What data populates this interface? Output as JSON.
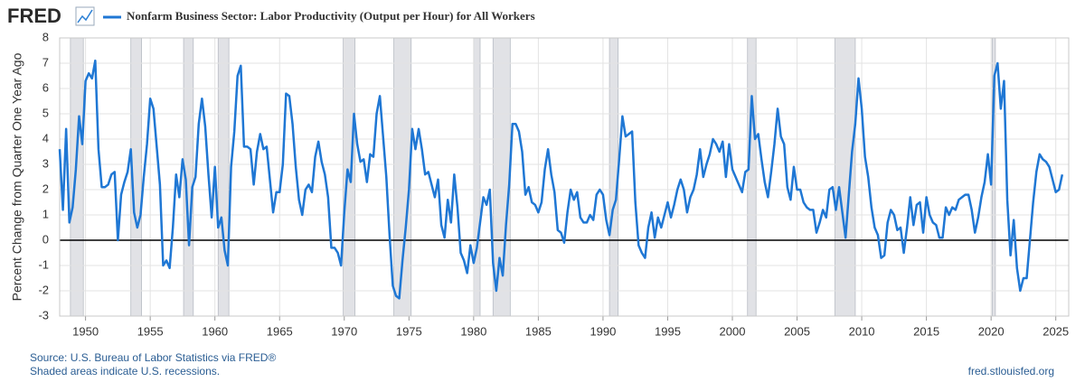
{
  "chart_data": {
    "type": "line",
    "logo": "FRED",
    "title": "Nonfarm Business Sector: Labor Productivity (Output per Hour) for All Workers",
    "ylabel": "Percent Change from Quarter One Year Ago",
    "source": "Source: U.S. Bureau of Labor Statistics via FRED®",
    "note": "Shaded areas indicate U.S. recessions.",
    "url": "fred.stlouisfed.org",
    "xlim": [
      1948,
      2026
    ],
    "xticks": [
      1950,
      1955,
      1960,
      1965,
      1970,
      1975,
      1980,
      1985,
      1990,
      1995,
      2000,
      2005,
      2010,
      2015,
      2020,
      2025
    ],
    "ylim": [
      -3,
      8
    ],
    "yticks": [
      -3,
      -2,
      -1,
      0,
      1,
      2,
      3,
      4,
      5,
      6,
      7,
      8
    ],
    "grid": true,
    "recession_color": "#e1e2e6",
    "recessions": [
      [
        1948.83,
        1949.83
      ],
      [
        1953.5,
        1954.33
      ],
      [
        1957.58,
        1958.33
      ],
      [
        1960.25,
        1961.08
      ],
      [
        1969.92,
        1970.83
      ],
      [
        1973.83,
        1975.17
      ],
      [
        1980.0,
        1980.5
      ],
      [
        1981.5,
        1982.83
      ],
      [
        1990.5,
        1991.17
      ],
      [
        2001.17,
        2001.83
      ],
      [
        2007.92,
        2009.5
      ],
      [
        2020.08,
        2020.33
      ]
    ],
    "x": [
      1948,
      1948.25,
      1948.5,
      1948.75,
      1949,
      1949.25,
      1949.5,
      1949.75,
      1950,
      1950.25,
      1950.5,
      1950.75,
      1951,
      1951.25,
      1951.5,
      1951.75,
      1952,
      1952.25,
      1952.5,
      1952.75,
      1953,
      1953.25,
      1953.5,
      1953.75,
      1954,
      1954.25,
      1954.5,
      1954.75,
      1955,
      1955.25,
      1955.5,
      1955.75,
      1956,
      1956.25,
      1956.5,
      1956.75,
      1957,
      1957.25,
      1957.5,
      1957.75,
      1958,
      1958.25,
      1958.5,
      1958.75,
      1959,
      1959.25,
      1959.5,
      1959.75,
      1960,
      1960.25,
      1960.5,
      1960.75,
      1961,
      1961.25,
      1961.5,
      1961.75,
      1962,
      1962.25,
      1962.5,
      1962.75,
      1963,
      1963.25,
      1963.5,
      1963.75,
      1964,
      1964.25,
      1964.5,
      1964.75,
      1965,
      1965.25,
      1965.5,
      1965.75,
      1966,
      1966.25,
      1966.5,
      1966.75,
      1967,
      1967.25,
      1967.5,
      1967.75,
      1968,
      1968.25,
      1968.5,
      1968.75,
      1969,
      1969.25,
      1969.5,
      1969.75,
      1970,
      1970.25,
      1970.5,
      1970.75,
      1971,
      1971.25,
      1971.5,
      1971.75,
      1972,
      1972.25,
      1972.5,
      1972.75,
      1973,
      1973.25,
      1973.5,
      1973.75,
      1974,
      1974.25,
      1974.5,
      1974.75,
      1975,
      1975.25,
      1975.5,
      1975.75,
      1976,
      1976.25,
      1976.5,
      1976.75,
      1977,
      1977.25,
      1977.5,
      1977.75,
      1978,
      1978.25,
      1978.5,
      1978.75,
      1979,
      1979.25,
      1979.5,
      1979.75,
      1980,
      1980.25,
      1980.5,
      1980.75,
      1981,
      1981.25,
      1981.5,
      1981.75,
      1982,
      1982.25,
      1982.5,
      1982.75,
      1983,
      1983.25,
      1983.5,
      1983.75,
      1984,
      1984.25,
      1984.5,
      1984.75,
      1985,
      1985.25,
      1985.5,
      1985.75,
      1986,
      1986.25,
      1986.5,
      1986.75,
      1987,
      1987.25,
      1987.5,
      1987.75,
      1988,
      1988.25,
      1988.5,
      1988.75,
      1989,
      1989.25,
      1989.5,
      1989.75,
      1990,
      1990.25,
      1990.5,
      1990.75,
      1991,
      1991.25,
      1991.5,
      1991.75,
      1992,
      1992.25,
      1992.5,
      1992.75,
      1993,
      1993.25,
      1993.5,
      1993.75,
      1994,
      1994.25,
      1994.5,
      1994.75,
      1995,
      1995.25,
      1995.5,
      1995.75,
      1996,
      1996.25,
      1996.5,
      1996.75,
      1997,
      1997.25,
      1997.5,
      1997.75,
      1998,
      1998.25,
      1998.5,
      1998.75,
      1999,
      1999.25,
      1999.5,
      1999.75,
      2000,
      2000.25,
      2000.5,
      2000.75,
      2001,
      2001.25,
      2001.5,
      2001.75,
      2002,
      2002.25,
      2002.5,
      2002.75,
      2003,
      2003.25,
      2003.5,
      2003.75,
      2004,
      2004.25,
      2004.5,
      2004.75,
      2005,
      2005.25,
      2005.5,
      2005.75,
      2006,
      2006.25,
      2006.5,
      2006.75,
      2007,
      2007.25,
      2007.5,
      2007.75,
      2008,
      2008.25,
      2008.5,
      2008.75,
      2009,
      2009.25,
      2009.5,
      2009.75,
      2010,
      2010.25,
      2010.5,
      2010.75,
      2011,
      2011.25,
      2011.5,
      2011.75,
      2012,
      2012.25,
      2012.5,
      2012.75,
      2013,
      2013.25,
      2013.5,
      2013.75,
      2014,
      2014.25,
      2014.5,
      2014.75,
      2015,
      2015.25,
      2015.5,
      2015.75,
      2016,
      2016.25,
      2016.5,
      2016.75,
      2017,
      2017.25,
      2017.5,
      2017.75,
      2018,
      2018.25,
      2018.5,
      2018.75,
      2019,
      2019.25,
      2019.5,
      2019.75,
      2020,
      2020.25,
      2020.5,
      2020.75,
      2021,
      2021.25,
      2021.5,
      2021.75,
      2022,
      2022.25,
      2022.5,
      2022.75,
      2023,
      2023.25,
      2023.5,
      2023.75,
      2024,
      2024.25,
      2024.5,
      2024.75,
      2025,
      2025.25,
      2025.5
    ],
    "series": [
      {
        "name": "Nonfarm Business Sector: Labor Productivity (Output per Hour) for All Workers",
        "color": "#1f77d4",
        "values": [
          3.6,
          1.2,
          4.4,
          0.7,
          1.3,
          2.8,
          4.9,
          3.8,
          6.3,
          6.6,
          6.4,
          7.1,
          3.6,
          2.1,
          2.1,
          2.2,
          2.6,
          2.7,
          0.0,
          1.8,
          2.3,
          2.7,
          3.6,
          1.1,
          0.5,
          1.0,
          2.5,
          3.8,
          5.6,
          5.2,
          3.7,
          2.2,
          -1.0,
          -0.8,
          -1.1,
          0.5,
          2.6,
          1.7,
          3.2,
          2.4,
          -0.2,
          2.1,
          2.5,
          4.6,
          5.6,
          4.5,
          2.6,
          0.9,
          2.9,
          0.5,
          0.9,
          -0.4,
          -1.0,
          2.9,
          4.3,
          6.5,
          6.9,
          3.7,
          3.7,
          3.6,
          2.2,
          3.5,
          4.2,
          3.6,
          3.7,
          2.4,
          1.1,
          1.9,
          1.9,
          3.0,
          5.8,
          5.7,
          4.6,
          2.9,
          1.6,
          1.0,
          2.0,
          2.2,
          1.9,
          3.3,
          3.9,
          3.1,
          2.6,
          1.7,
          -0.3,
          -0.3,
          -0.5,
          -1.0,
          1.1,
          2.8,
          2.3,
          5.0,
          3.8,
          3.1,
          3.2,
          2.3,
          3.4,
          3.3,
          5.0,
          5.7,
          4.1,
          2.5,
          0.2,
          -1.8,
          -2.2,
          -2.3,
          -0.8,
          0.5,
          2.0,
          4.4,
          3.6,
          4.4,
          3.6,
          2.6,
          2.7,
          2.2,
          1.7,
          2.4,
          0.6,
          0.1,
          1.6,
          0.7,
          2.6,
          1.3,
          -0.5,
          -0.8,
          -1.3,
          -0.2,
          -0.9,
          -0.3,
          0.7,
          1.7,
          1.4,
          2.0,
          -0.9,
          -2.0,
          -0.7,
          -1.4,
          0.6,
          2.2,
          4.6,
          4.6,
          4.3,
          3.5,
          1.8,
          2.1,
          1.5,
          1.4,
          1.1,
          1.5,
          2.8,
          3.6,
          2.6,
          1.9,
          0.4,
          0.3,
          -0.1,
          1.1,
          2.0,
          1.6,
          1.9,
          0.9,
          0.7,
          0.7,
          1.0,
          0.8,
          1.8,
          2.0,
          1.8,
          0.8,
          0.2,
          1.2,
          1.6,
          3.2,
          4.9,
          4.1,
          4.2,
          4.3,
          1.5,
          -0.2,
          -0.5,
          -0.7,
          0.5,
          1.1,
          0.1,
          0.9,
          0.5,
          1.0,
          1.5,
          0.9,
          1.4,
          2.0,
          2.4,
          2.0,
          1.1,
          1.7,
          2.0,
          2.6,
          3.6,
          2.5,
          3.0,
          3.4,
          4.0,
          3.8,
          3.5,
          3.9,
          2.5,
          3.8,
          2.8,
          2.5,
          2.2,
          1.9,
          2.7,
          2.8,
          5.7,
          4.0,
          4.2,
          3.2,
          2.3,
          1.7,
          2.7,
          3.8,
          5.2,
          4.1,
          3.8,
          2.1,
          1.6,
          2.9,
          2.0,
          2.0,
          1.5,
          1.3,
          1.2,
          1.2,
          0.3,
          0.7,
          1.2,
          0.9,
          2.0,
          2.1,
          1.2,
          2.1,
          1.1,
          0.1,
          1.8,
          3.5,
          4.6,
          6.4,
          5.2,
          3.3,
          2.5,
          1.3,
          0.5,
          0.2,
          -0.7,
          -0.6,
          0.7,
          1.2,
          1.0,
          0.4,
          0.5,
          -0.5,
          0.5,
          1.7,
          0.6,
          1.4,
          1.5,
          0.3,
          1.7,
          1.0,
          0.7,
          0.6,
          0.1,
          0.1,
          1.3,
          1.0,
          1.3,
          1.2,
          1.6,
          1.7,
          1.8,
          1.8,
          1.2,
          0.3,
          0.9,
          1.7,
          2.3,
          3.4,
          2.2,
          6.5,
          7.0,
          5.2,
          6.3,
          1.6,
          -0.6,
          0.8,
          -1.1,
          -2.0,
          -1.5,
          -1.5,
          0.0,
          1.5,
          2.7,
          3.4,
          3.2,
          3.1,
          2.9,
          2.4,
          1.9,
          2.0,
          2.6
        ]
      }
    ]
  }
}
